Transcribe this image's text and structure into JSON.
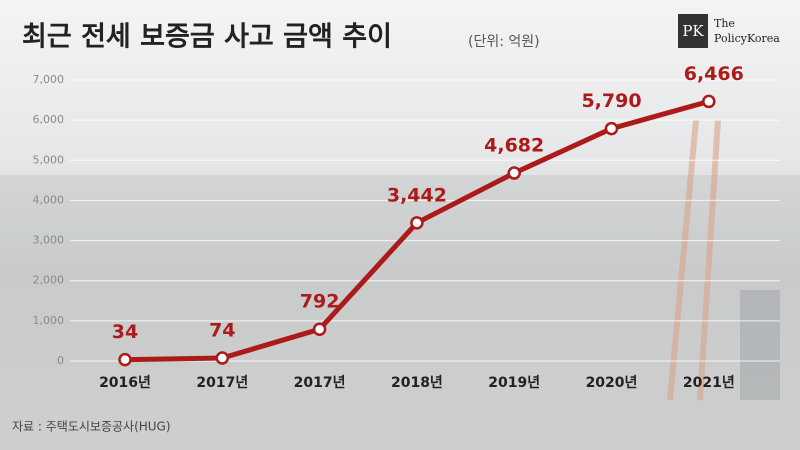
{
  "chart_data": {
    "type": "line",
    "title": "최근 전세 보증금 사고 금액 추이",
    "subtitle": "(단위: 억원)",
    "source": "자료 : 주택도시보증공사(HUG)",
    "logo": {
      "mark": "PK",
      "name": [
        "The",
        "PolicyKorea"
      ]
    },
    "categories": [
      "2016년",
      "2017년",
      "2017년",
      "2018년",
      "2019년",
      "2020년",
      "2021년"
    ],
    "values": [
      34,
      74,
      792,
      3442,
      4682,
      5790,
      6466
    ],
    "value_labels": [
      "34",
      "74",
      "792",
      "3,442",
      "4,682",
      "5,790",
      "6,466"
    ],
    "color": "#ad1a1a",
    "ylim": [
      0,
      7000
    ],
    "yticks": [
      0,
      {
        "value": 1000,
        "label": "1,000"
      },
      {
        "value": 2000,
        "label": "2,000"
      },
      {
        "value": 3000,
        "label": "3,000"
      },
      {
        "value": 4000,
        "label": "4,000"
      },
      {
        "value": 5000,
        "label": "5,000"
      },
      {
        "value": 6000,
        "label": "6,000"
      },
      {
        "value": 7000,
        "label": "7,000"
      }
    ],
    "grid": true
  }
}
